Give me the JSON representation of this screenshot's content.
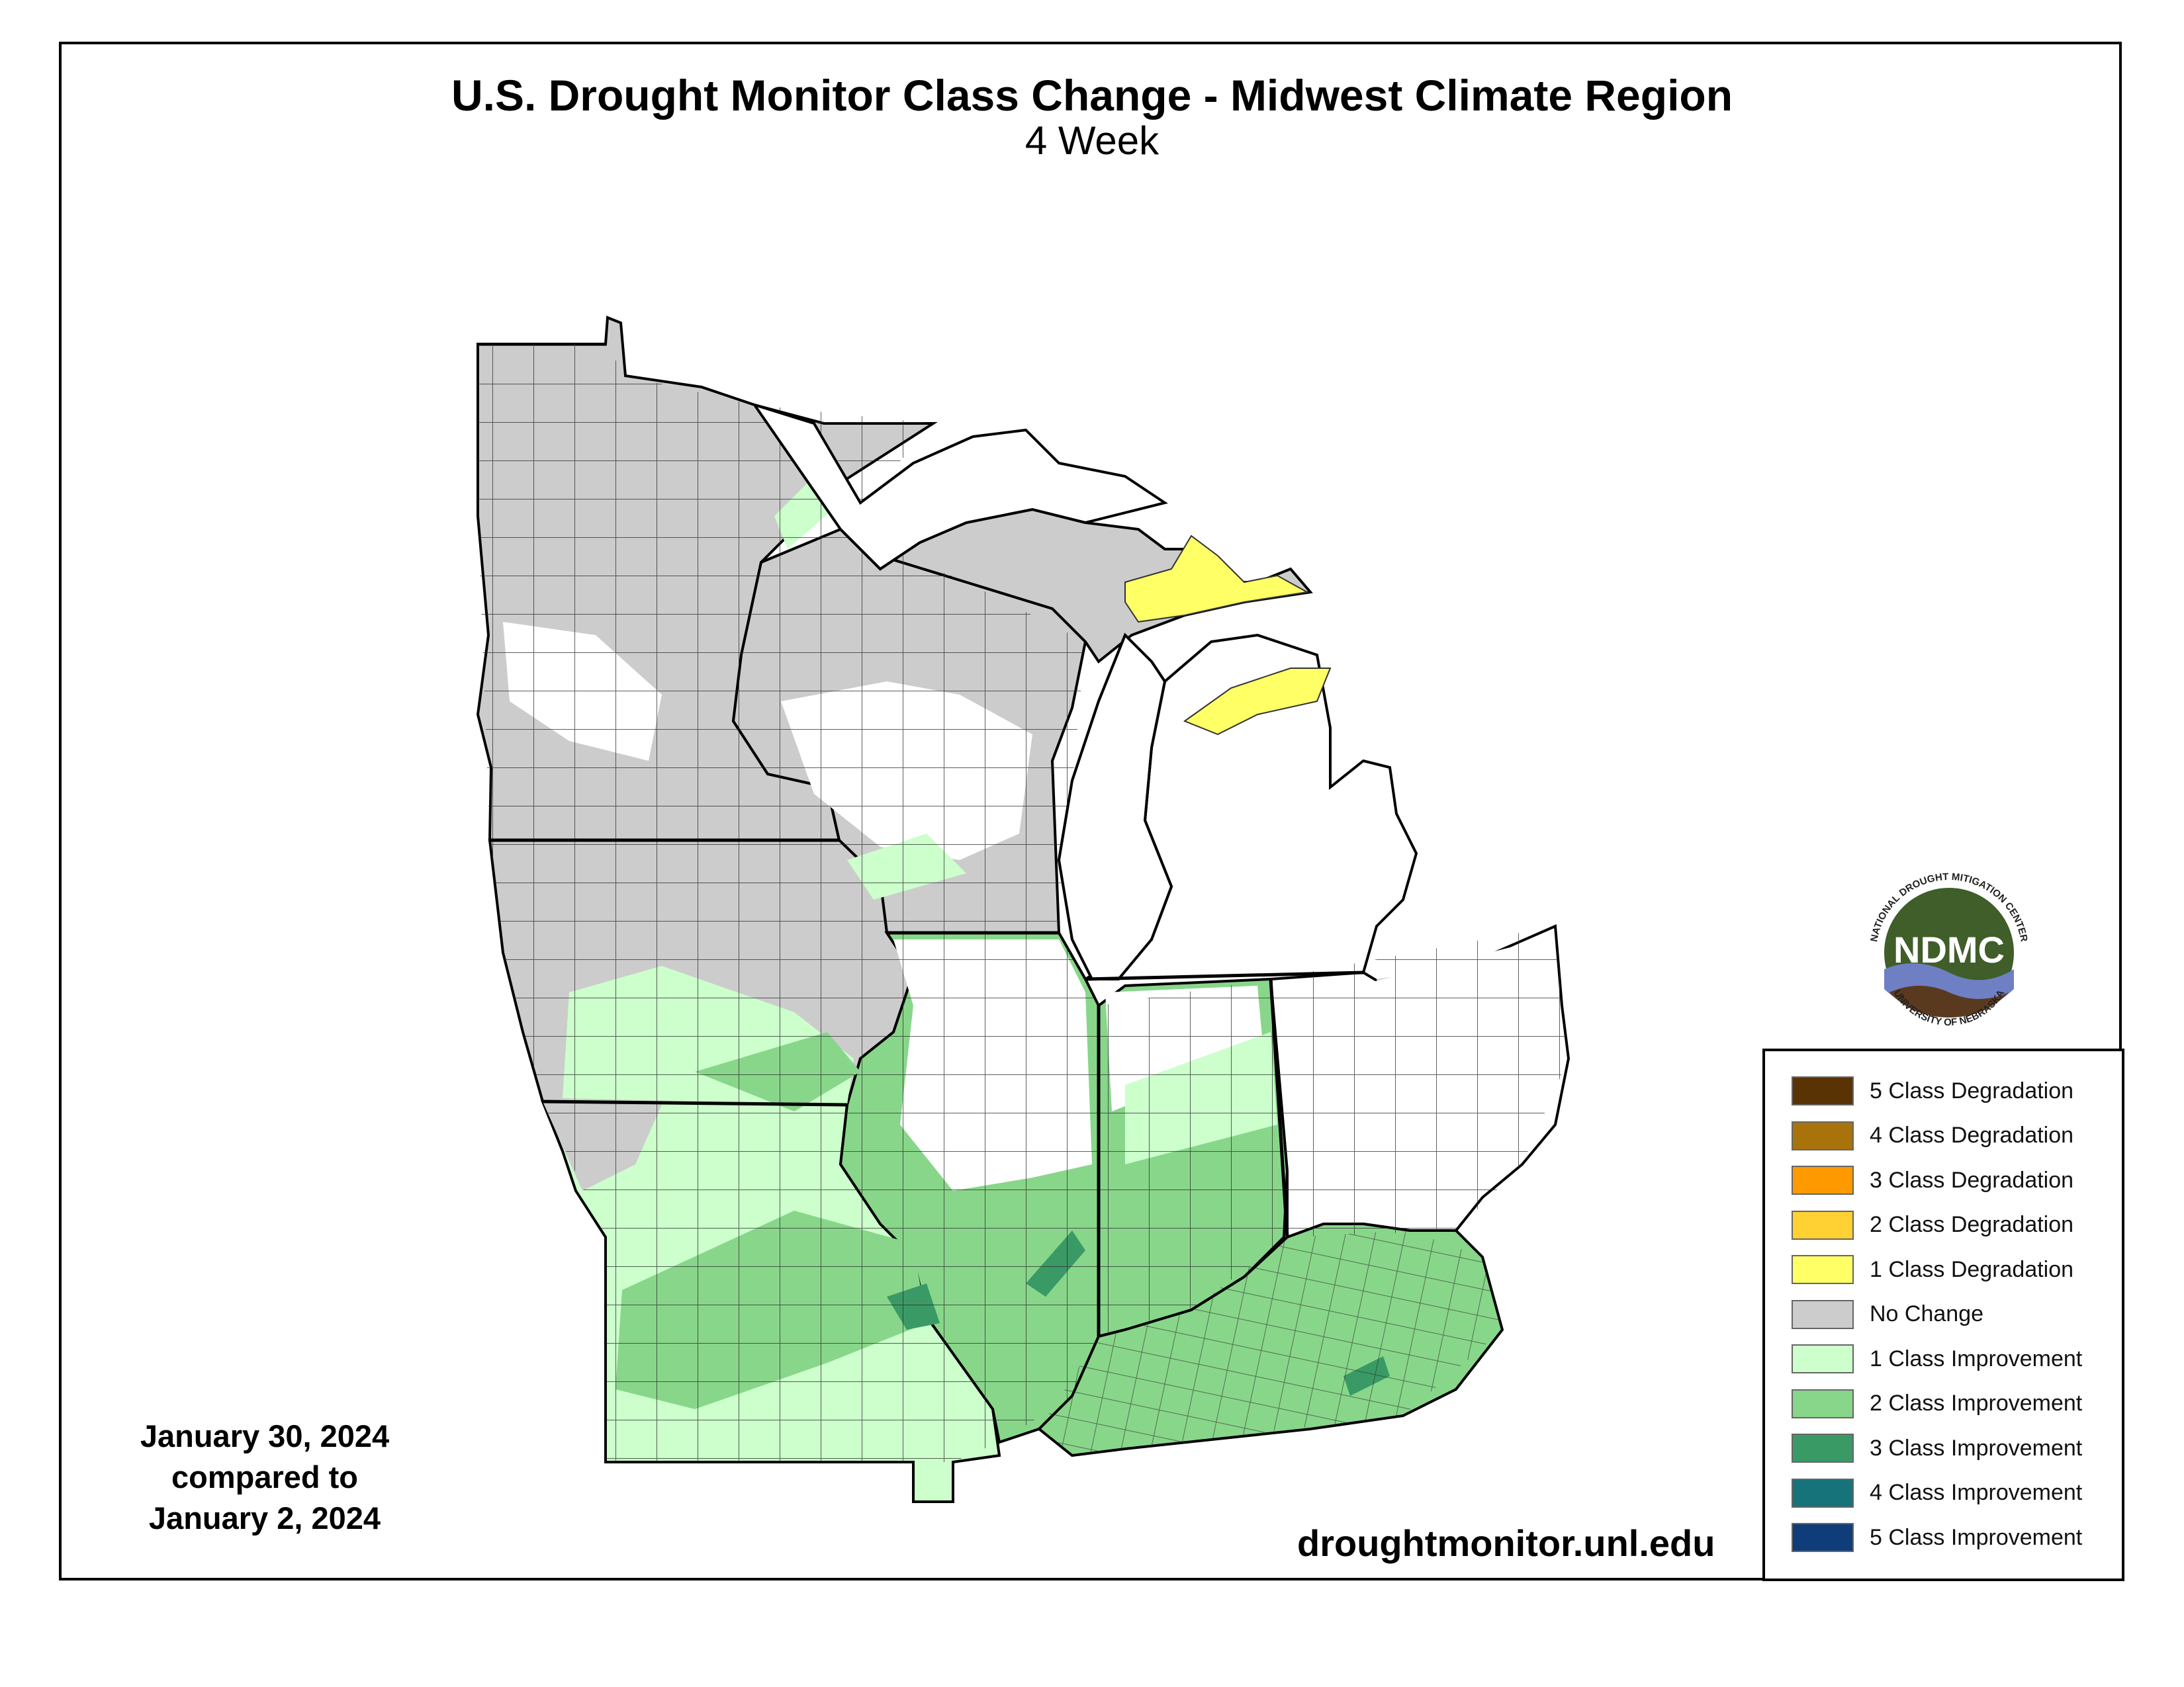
{
  "title": "U.S. Drought Monitor Class Change - Midwest Climate Region",
  "subtitle": "4 Week",
  "dates": {
    "line1": "January 30, 2024",
    "line2": "compared to",
    "line3": "January 2, 2024"
  },
  "website": "droughtmonitor.unl.edu",
  "logo": {
    "acronym": "NDMC",
    "ring_top": "NATIONAL DROUGHT MITIGATION CENTER",
    "ring_bottom": "UNIVERSITY OF NEBRASKA"
  },
  "legend": [
    {
      "label": "5 Class Degradation",
      "color": "#5a3305"
    },
    {
      "label": "4 Class Degradation",
      "color": "#a8730a"
    },
    {
      "label": "3 Class Degradation",
      "color": "#ff9900"
    },
    {
      "label": "2 Class Degradation",
      "color": "#ffd133"
    },
    {
      "label": "1 Class Degradation",
      "color": "#ffff66"
    },
    {
      "label": "No Change",
      "color": "#cccccc"
    },
    {
      "label": "1 Class Improvement",
      "color": "#ccffcc"
    },
    {
      "label": "2 Class Improvement",
      "color": "#88d68a"
    },
    {
      "label": "3 Class Improvement",
      "color": "#3a9a66"
    },
    {
      "label": "4 Class Improvement",
      "color": "#16737a"
    },
    {
      "label": "5 Class Improvement",
      "color": "#0f3d7a"
    }
  ],
  "regions": [
    {
      "name": "Minnesota",
      "dominant_change": "No Change"
    },
    {
      "name": "Wisconsin",
      "dominant_change": "No Change"
    },
    {
      "name": "Michigan",
      "dominant_change": "No Change"
    },
    {
      "name": "Iowa",
      "dominant_change": "No Change"
    },
    {
      "name": "Missouri",
      "dominant_change": "1 Class Improvement"
    },
    {
      "name": "Illinois",
      "dominant_change": "2 Class Improvement"
    },
    {
      "name": "Indiana",
      "dominant_change": "2 Class Improvement"
    },
    {
      "name": "Ohio",
      "dominant_change": "No Change"
    },
    {
      "name": "Kentucky",
      "dominant_change": "2 Class Improvement"
    }
  ]
}
